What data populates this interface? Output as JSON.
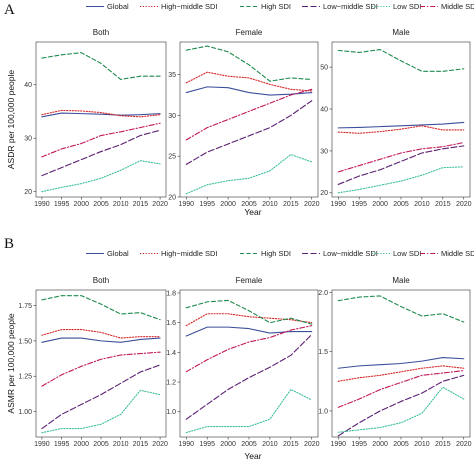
{
  "figure": {
    "legend_items": [
      {
        "name": "Global",
        "color": "#3B4F9A",
        "dash": "solid"
      },
      {
        "name": "High−middle SDI",
        "color": "#D62728",
        "dash": "dotted"
      },
      {
        "name": "High SDI",
        "color": "#1F8A4C",
        "dash": "dashed"
      },
      {
        "name": "Low−middle SDI",
        "color": "#5B1F72",
        "dash": "longdash"
      },
      {
        "name": "Low SDI",
        "color": "#3FBF9F",
        "dash": "dotted"
      },
      {
        "name": "Middle SDI",
        "color": "#C2185B",
        "dash": "dotdash"
      }
    ]
  },
  "chart_data": [
    {
      "type": "line",
      "panel_label": "A",
      "ylabel": "ASDR per 100,000 people",
      "xlabel": "Year",
      "x": [
        1990,
        1995,
        2000,
        2005,
        2010,
        2015,
        2020
      ],
      "x_ticks": [
        "1990",
        "1995",
        "2000",
        "2005",
        "2010",
        "2015",
        "2020"
      ],
      "facets": [
        {
          "title": "Both",
          "ylim": [
            19,
            48
          ],
          "y_ticks": [
            20,
            30,
            40
          ],
          "series": [
            {
              "name": "Global",
              "values": [
                34.0,
                34.7,
                34.6,
                34.5,
                34.3,
                34.4,
                34.6
              ]
            },
            {
              "name": "High−middle SDI",
              "values": [
                34.4,
                35.2,
                35.1,
                34.8,
                34.2,
                34.0,
                34.4
              ]
            },
            {
              "name": "High SDI",
              "values": [
                45.0,
                45.6,
                46.0,
                44.0,
                41.0,
                41.6,
                41.6
              ]
            },
            {
              "name": "Low−middle SDI",
              "values": [
                23.0,
                24.5,
                26.0,
                27.5,
                28.8,
                30.5,
                31.5
              ]
            },
            {
              "name": "Low SDI",
              "values": [
                20.0,
                20.8,
                21.5,
                22.5,
                24.0,
                25.8,
                25.2
              ]
            },
            {
              "name": "Middle SDI",
              "values": [
                26.5,
                28.0,
                29.0,
                30.5,
                31.2,
                32.0,
                32.8
              ]
            }
          ]
        },
        {
          "title": "Female",
          "ylim": [
            20,
            39
          ],
          "y_ticks": [
            20,
            25,
            30,
            35
          ],
          "series": [
            {
              "name": "Global",
              "values": [
                32.8,
                33.5,
                33.4,
                32.8,
                32.5,
                32.6,
                32.8
              ]
            },
            {
              "name": "High−middle SDI",
              "values": [
                34.0,
                35.3,
                34.8,
                34.6,
                33.8,
                33.2,
                33.0
              ]
            },
            {
              "name": "High SDI",
              "values": [
                38.0,
                38.5,
                37.8,
                36.2,
                34.2,
                34.6,
                34.4
              ]
            },
            {
              "name": "Low−middle SDI",
              "values": [
                24.0,
                25.5,
                26.5,
                27.5,
                28.5,
                30.0,
                31.8
              ]
            },
            {
              "name": "Low SDI",
              "values": [
                20.4,
                21.5,
                22.0,
                22.3,
                23.2,
                25.2,
                24.3
              ]
            },
            {
              "name": "Middle SDI",
              "values": [
                27.0,
                28.5,
                29.5,
                30.5,
                31.5,
                32.5,
                33.2
              ]
            }
          ]
        },
        {
          "title": "Male",
          "ylim": [
            19,
            56
          ],
          "y_ticks": [
            20,
            30,
            40,
            50
          ],
          "series": [
            {
              "name": "Global",
              "values": [
                35.5,
                35.6,
                35.8,
                36.0,
                36.2,
                36.4,
                36.8
              ]
            },
            {
              "name": "High−middle SDI",
              "values": [
                34.5,
                34.2,
                34.6,
                35.2,
                36.0,
                35.0,
                35.0
              ]
            },
            {
              "name": "High SDI",
              "values": [
                54.0,
                53.5,
                54.2,
                51.5,
                49.0,
                49.0,
                49.6
              ]
            },
            {
              "name": "Low−middle SDI",
              "values": [
                22.0,
                24.0,
                25.5,
                27.5,
                29.5,
                30.5,
                31.2
              ]
            },
            {
              "name": "Low SDI",
              "values": [
                20.0,
                20.8,
                21.8,
                22.8,
                24.2,
                26.0,
                26.2
              ]
            },
            {
              "name": "Middle SDI",
              "values": [
                25.0,
                26.5,
                28.0,
                29.5,
                30.5,
                31.0,
                32.0
              ]
            }
          ]
        }
      ]
    },
    {
      "type": "line",
      "panel_label": "B",
      "ylabel": "ASMR per 100,000 people",
      "xlabel": "Year",
      "x": [
        1990,
        1995,
        2000,
        2005,
        2010,
        2015,
        2020
      ],
      "x_ticks": [
        "1990",
        "1995",
        "2000",
        "2005",
        "2010",
        "2015",
        "2020"
      ],
      "facets": [
        {
          "title": "Both",
          "ylim": [
            0.82,
            1.86
          ],
          "y_ticks": [
            1.0,
            1.25,
            1.5,
            1.75
          ],
          "y_tick_labels": [
            "1.00",
            "1.25",
            "1.50",
            "1.75"
          ],
          "series": [
            {
              "name": "Global",
              "values": [
                1.49,
                1.52,
                1.52,
                1.5,
                1.49,
                1.51,
                1.52
              ]
            },
            {
              "name": "High−middle SDI",
              "values": [
                1.54,
                1.58,
                1.58,
                1.56,
                1.52,
                1.53,
                1.53
              ]
            },
            {
              "name": "High SDI",
              "values": [
                1.79,
                1.82,
                1.82,
                1.76,
                1.69,
                1.7,
                1.65
              ]
            },
            {
              "name": "Low−middle SDI",
              "values": [
                0.88,
                0.98,
                1.05,
                1.12,
                1.2,
                1.28,
                1.33
              ]
            },
            {
              "name": "Low SDI",
              "values": [
                0.85,
                0.88,
                0.88,
                0.91,
                0.98,
                1.15,
                1.12
              ]
            },
            {
              "name": "Middle SDI",
              "values": [
                1.18,
                1.26,
                1.32,
                1.37,
                1.4,
                1.41,
                1.42
              ]
            }
          ]
        },
        {
          "title": "Female",
          "ylim": [
            0.83,
            1.82
          ],
          "y_ticks": [
            1.0,
            1.2,
            1.4,
            1.6,
            1.8
          ],
          "y_tick_labels": [
            "1.0",
            "1.2",
            "1.4",
            "1.6",
            "1.8"
          ],
          "series": [
            {
              "name": "Global",
              "values": [
                1.51,
                1.57,
                1.57,
                1.56,
                1.53,
                1.54,
                1.54
              ]
            },
            {
              "name": "High−middle SDI",
              "values": [
                1.58,
                1.66,
                1.66,
                1.64,
                1.63,
                1.62,
                1.6
              ]
            },
            {
              "name": "High SDI",
              "values": [
                1.7,
                1.74,
                1.75,
                1.68,
                1.6,
                1.63,
                1.59
              ]
            },
            {
              "name": "Low−middle SDI",
              "values": [
                0.95,
                1.05,
                1.15,
                1.23,
                1.3,
                1.38,
                1.52
              ]
            },
            {
              "name": "Low SDI",
              "values": [
                0.86,
                0.9,
                0.9,
                0.9,
                0.95,
                1.15,
                1.08
              ]
            },
            {
              "name": "Middle SDI",
              "values": [
                1.27,
                1.35,
                1.42,
                1.47,
                1.5,
                1.55,
                1.58
              ]
            }
          ]
        },
        {
          "title": "Male",
          "ylim": [
            0.78,
            2.02
          ],
          "y_ticks": [
            1.0,
            1.5,
            2.0
          ],
          "y_tick_labels": [
            "1.0",
            "1.5",
            "2.0"
          ],
          "series": [
            {
              "name": "Global",
              "values": [
                1.36,
                1.38,
                1.39,
                1.4,
                1.42,
                1.45,
                1.44
              ]
            },
            {
              "name": "High−middle SDI",
              "values": [
                1.25,
                1.28,
                1.3,
                1.33,
                1.36,
                1.38,
                1.36
              ]
            },
            {
              "name": "High SDI",
              "values": [
                1.93,
                1.96,
                1.97,
                1.88,
                1.8,
                1.82,
                1.75
              ]
            },
            {
              "name": "Low−middle SDI",
              "values": [
                0.79,
                0.9,
                1.0,
                1.08,
                1.15,
                1.25,
                1.3
              ]
            },
            {
              "name": "Low SDI",
              "values": [
                0.82,
                0.84,
                0.86,
                0.9,
                0.98,
                1.2,
                1.1
              ]
            },
            {
              "name": "Middle SDI",
              "values": [
                1.03,
                1.1,
                1.18,
                1.24,
                1.3,
                1.32,
                1.34
              ]
            }
          ]
        }
      ]
    }
  ]
}
